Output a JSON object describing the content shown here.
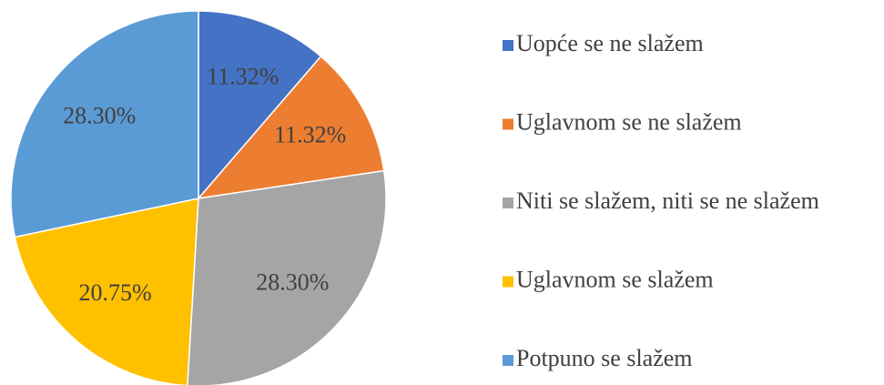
{
  "chart_data": {
    "type": "pie",
    "categories": [
      "Uopće se ne slažem",
      "Uglavnom se ne slažem",
      "Niti se slažem, niti se ne slažem",
      "Uglavnom se slažem",
      "Potpuno se slažem"
    ],
    "values": [
      11.32,
      11.32,
      28.3,
      20.75,
      28.3
    ],
    "value_labels": [
      "11.32%",
      "11.32%",
      "28.30%",
      "20.75%",
      "28.30%"
    ],
    "colors": [
      "#4472c4",
      "#ed7d31",
      "#a5a5a5",
      "#ffc000",
      "#5b9bd5"
    ],
    "legend": "right"
  }
}
